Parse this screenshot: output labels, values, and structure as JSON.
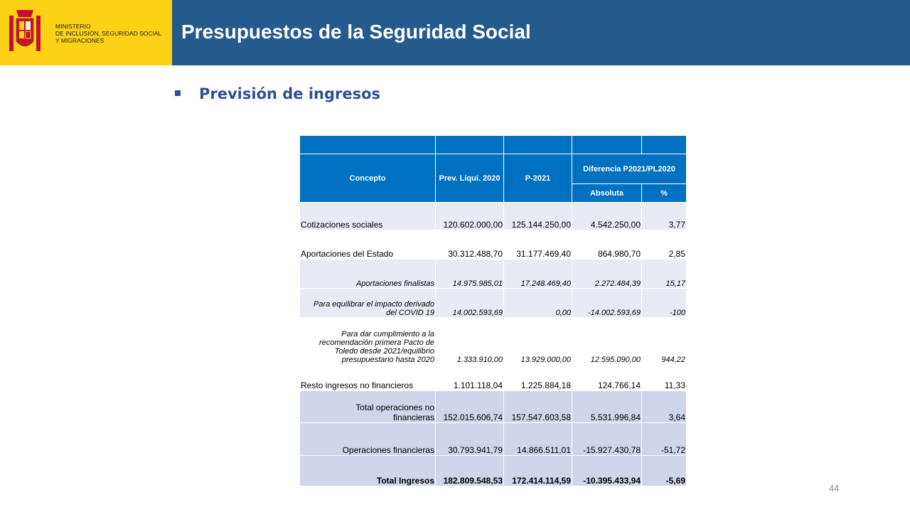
{
  "header": {
    "ministry": [
      "MINISTERIO",
      "DE INCLUSIÓN, SEGURIDAD SOCIAL",
      "Y MIGRACIONES"
    ],
    "title": "Presupuestos de la Seguridad Social"
  },
  "section": "Previsión de ingresos",
  "table": {
    "header": {
      "concepto": "Concepto",
      "prev": "Prev. Liqui. 2020",
      "p2021": "P-2021",
      "diferencia": "Diferencia  P2021/PL2020",
      "absoluta": "Absoluta",
      "pct": "%"
    },
    "rows": [
      [
        "Cotizaciones sociales",
        "120.602.000,00",
        "125.144.250,00",
        "4.542.250,00",
        "3,77"
      ],
      [
        "Aportaciones del Estado",
        "30.312.488,70",
        "31.177.469,40",
        "864.980,70",
        "2,85"
      ],
      [
        "Aportaciones finalistas",
        "14.975.985,01",
        "17.248.469,40",
        "2.272.484,39",
        "15,17"
      ],
      [
        "Para equilibrar el impacto derivado del COVID 19",
        "14.002.593,69",
        "0,00",
        "-14.002.593,69",
        "-100"
      ],
      [
        "Para dar cumplimiento a la recomendación primera Pacto de Toledo desde 2021/equilibrio presupuestario hasta 2020",
        "1.333.910,00",
        "13.929.000,00",
        "12.595.090,00",
        "944,22"
      ],
      [
        "Resto ingresos no financieros",
        "1.101.118,04",
        "1.225.884,18",
        "124.766,14",
        "11,33"
      ],
      [
        "Total operaciones no financieras",
        "152.015.606,74",
        "157.547.603,58",
        "5.531.996,84",
        "3,64"
      ],
      [
        "Operaciones financieras",
        "30.793.941,79",
        "14.866.511,01",
        "-15.927.430,78",
        "-51,72"
      ],
      [
        "Total Ingresos",
        "182.809.548,53",
        "172.414.114,59",
        "-10.395.433,94",
        "-5,69"
      ]
    ]
  },
  "page_number": "44"
}
